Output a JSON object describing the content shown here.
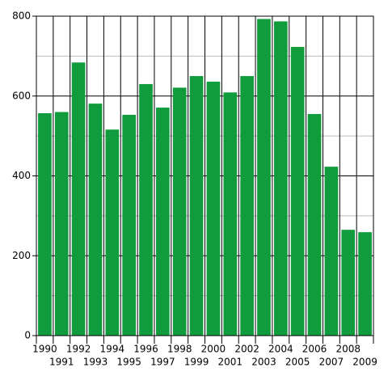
{
  "chart_data": {
    "type": "bar",
    "categories": [
      "1990",
      "1991",
      "1992",
      "1993",
      "1994",
      "1995",
      "1996",
      "1997",
      "1998",
      "1999",
      "2000",
      "2001",
      "2002",
      "2003",
      "2004",
      "2005",
      "2006",
      "2007",
      "2008",
      "2009"
    ],
    "values": [
      557,
      560,
      684,
      581,
      516,
      553,
      630,
      571,
      621,
      650,
      636,
      609,
      650,
      793,
      787,
      723,
      555,
      423,
      265,
      259
    ],
    "color": "#109c3c",
    "ylim": [
      0,
      800
    ],
    "yticks": [
      0,
      200,
      400,
      600,
      800
    ],
    "minor_yticks": [
      100,
      300,
      500,
      700
    ],
    "grid": true
  }
}
